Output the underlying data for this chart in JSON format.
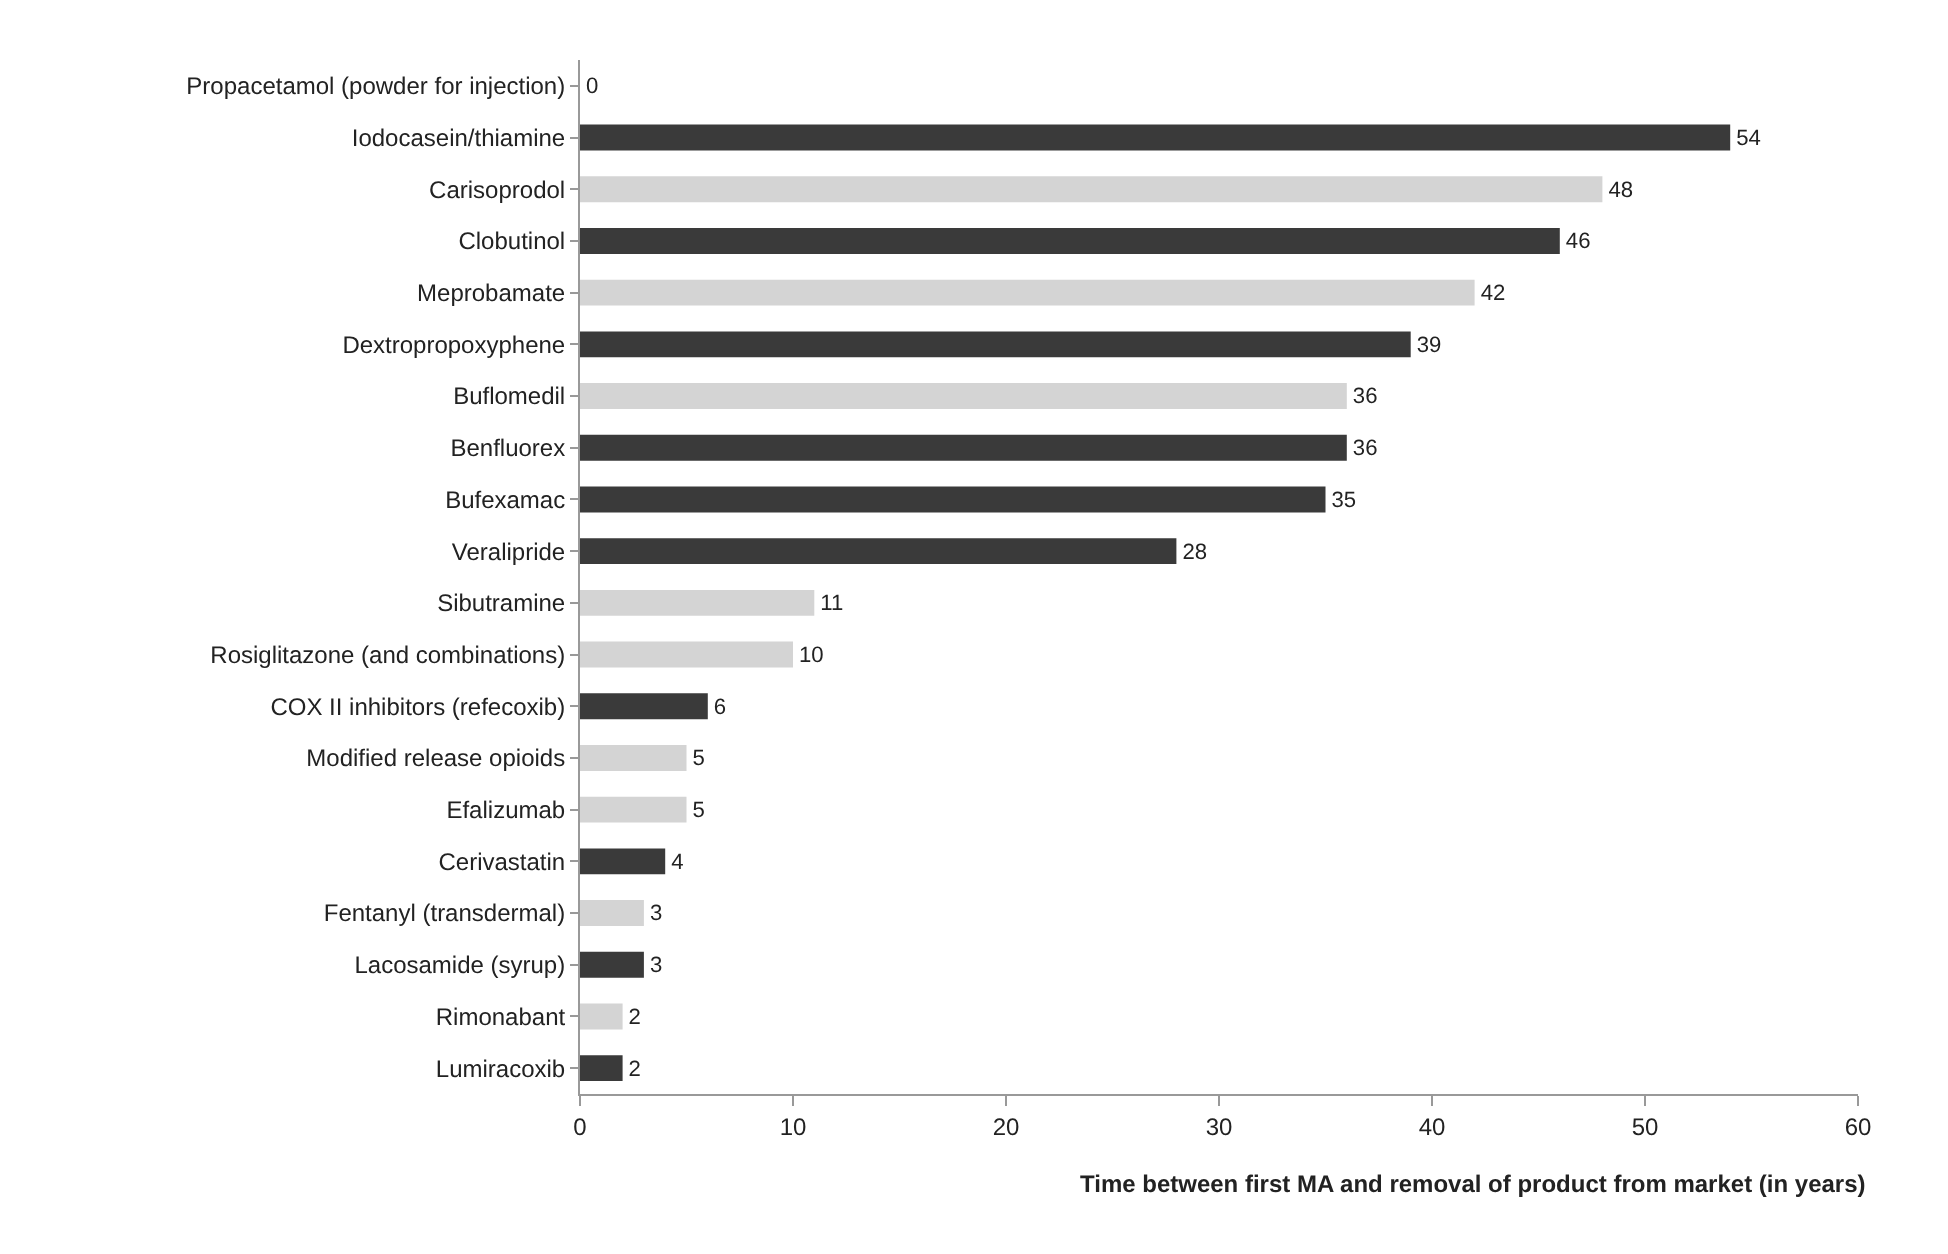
{
  "chart_data": {
    "type": "bar",
    "orientation": "horizontal",
    "categories": [
      "Propacetamol (powder for injection)",
      "Iodocasein/thiamine",
      "Carisoprodol",
      "Clobutinol",
      "Meprobamate",
      "Dextropropoxyphene",
      "Buflomedil",
      "Benfluorex",
      "Bufexamac",
      "Veralipride",
      "Sibutramine",
      "Rosiglitazone (and combinations)",
      "COX II inhibitors (refecoxib)",
      "Modified release opioids",
      "Efalizumab",
      "Cerivastatin",
      "Fentanyl (transdermal)",
      "Lacosamide (syrup)",
      "Rimonabant",
      "Lumiracoxib"
    ],
    "values": [
      0,
      54,
      48,
      46,
      42,
      39,
      36,
      36,
      35,
      28,
      11,
      10,
      6,
      5,
      5,
      4,
      3,
      3,
      2,
      2
    ],
    "colors": [
      "#3a3a3a",
      "#3a3a3a",
      "#d4d4d4",
      "#3a3a3a",
      "#d4d4d4",
      "#3a3a3a",
      "#d4d4d4",
      "#3a3a3a",
      "#3a3a3a",
      "#3a3a3a",
      "#d4d4d4",
      "#d4d4d4",
      "#3a3a3a",
      "#d4d4d4",
      "#d4d4d4",
      "#3a3a3a",
      "#d4d4d4",
      "#3a3a3a",
      "#d4d4d4",
      "#3a3a3a"
    ],
    "xlabel": "Time between first MA and removal of product from market (in years)",
    "xlim": [
      0,
      60
    ],
    "xticks": [
      0,
      10,
      20,
      30,
      40,
      50,
      60
    ],
    "data_labels": true
  }
}
